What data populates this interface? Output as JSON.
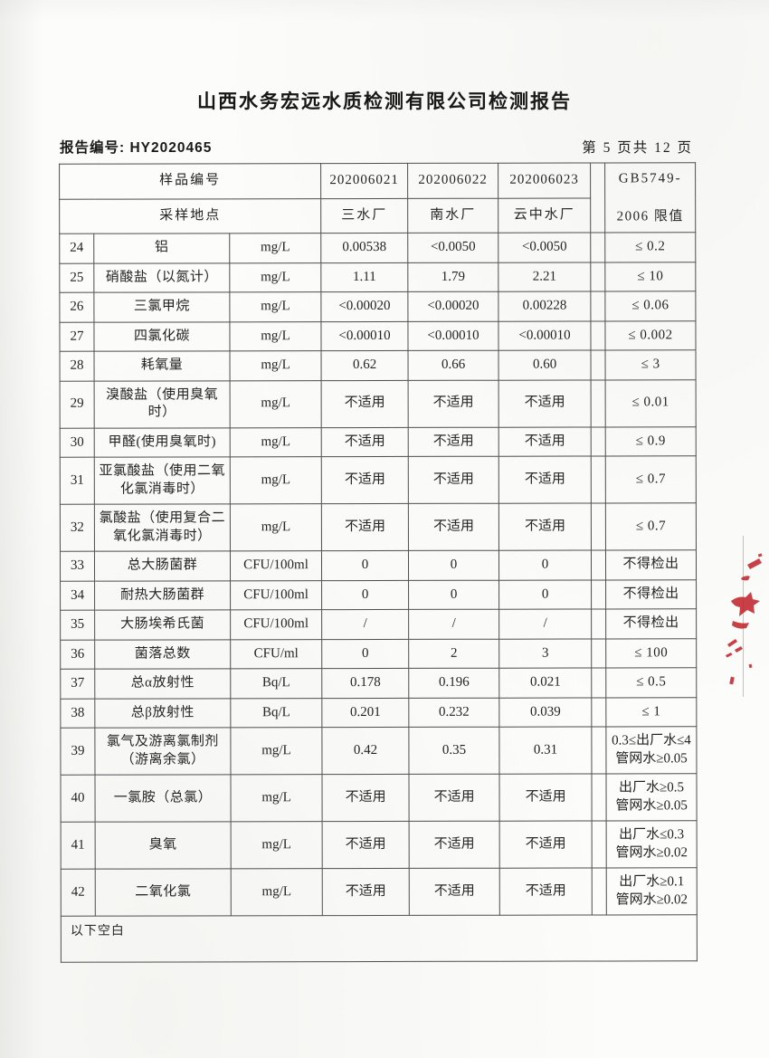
{
  "page": {
    "title": "山西水务宏远水质检测有限公司检测报告",
    "report_no_label": "报告编号:",
    "report_no": "HY2020465",
    "page_indicator": "第 5 页共 12 页"
  },
  "table": {
    "header": {
      "sample_id_label": "样品编号",
      "sample_ids": [
        "202006021",
        "202006022",
        "202006023"
      ],
      "location_label": "采样地点",
      "locations": [
        "三水厂",
        "南水厂",
        "云中水厂"
      ],
      "limit_header_line1": "GB5749-",
      "limit_header_line2": "2006 限值"
    },
    "rows": [
      {
        "no": "24",
        "name": "铝",
        "unit": "mg/L",
        "values": [
          "0.00538",
          "<0.0050",
          "<0.0050"
        ],
        "limit": "≤ 0.2"
      },
      {
        "no": "25",
        "name": "硝酸盐（以氮计）",
        "unit": "mg/L",
        "values": [
          "1.11",
          "1.79",
          "2.21"
        ],
        "limit": "≤ 10"
      },
      {
        "no": "26",
        "name": "三氯甲烷",
        "unit": "mg/L",
        "values": [
          "<0.00020",
          "<0.00020",
          "0.00228"
        ],
        "limit": "≤ 0.06"
      },
      {
        "no": "27",
        "name": "四氯化碳",
        "unit": "mg/L",
        "values": [
          "<0.00010",
          "<0.00010",
          "<0.00010"
        ],
        "limit": "≤ 0.002"
      },
      {
        "no": "28",
        "name": "耗氧量",
        "unit": "mg/L",
        "values": [
          "0.62",
          "0.66",
          "0.60"
        ],
        "limit": "≤ 3"
      },
      {
        "no": "29",
        "name": "溴酸盐（使用臭氧时）",
        "unit": "mg/L",
        "values": [
          "不适用",
          "不适用",
          "不适用"
        ],
        "limit": "≤ 0.01"
      },
      {
        "no": "30",
        "name": "甲醛(使用臭氧时)",
        "unit": "mg/L",
        "values": [
          "不适用",
          "不适用",
          "不适用"
        ],
        "limit": "≤ 0.9"
      },
      {
        "no": "31",
        "name": "亚氯酸盐（使用二氧化氯消毒时）",
        "unit": "mg/L",
        "values": [
          "不适用",
          "不适用",
          "不适用"
        ],
        "limit": "≤ 0.7"
      },
      {
        "no": "32",
        "name": "氯酸盐（使用复合二氧化氯消毒时）",
        "unit": "mg/L",
        "values": [
          "不适用",
          "不适用",
          "不适用"
        ],
        "limit": "≤ 0.7"
      },
      {
        "no": "33",
        "name": "总大肠菌群",
        "unit": "CFU/100ml",
        "values": [
          "0",
          "0",
          "0"
        ],
        "limit": "不得检出"
      },
      {
        "no": "34",
        "name": "耐热大肠菌群",
        "unit": "CFU/100ml",
        "values": [
          "0",
          "0",
          "0"
        ],
        "limit": "不得检出"
      },
      {
        "no": "35",
        "name": "大肠埃希氏菌",
        "unit": "CFU/100ml",
        "values": [
          "/",
          "/",
          "/"
        ],
        "limit": "不得检出"
      },
      {
        "no": "36",
        "name": "菌落总数",
        "unit": "CFU/ml",
        "values": [
          "0",
          "2",
          "3"
        ],
        "limit": "≤ 100"
      },
      {
        "no": "37",
        "name": "总α放射性",
        "unit": "Bq/L",
        "values": [
          "0.178",
          "0.196",
          "0.021"
        ],
        "limit": "≤ 0.5"
      },
      {
        "no": "38",
        "name": "总β放射性",
        "unit": "Bq/L",
        "values": [
          "0.201",
          "0.232",
          "0.039"
        ],
        "limit": "≤ 1"
      },
      {
        "no": "39",
        "name": "氯气及游离氯制剂（游离余氯）",
        "unit": "mg/L",
        "values": [
          "0.42",
          "0.35",
          "0.31"
        ],
        "limit": "0.3≤出厂水≤4\n管网水≥0.05"
      },
      {
        "no": "40",
        "name": "一氯胺（总氯）",
        "unit": "mg/L",
        "values": [
          "不适用",
          "不适用",
          "不适用"
        ],
        "limit": "出厂水≥0.5\n管网水≥0.05"
      },
      {
        "no": "41",
        "name": "臭氧",
        "unit": "mg/L",
        "values": [
          "不适用",
          "不适用",
          "不适用"
        ],
        "limit": "出厂水≤0.3\n管网水≥0.02"
      },
      {
        "no": "42",
        "name": "二氧化氯",
        "unit": "mg/L",
        "values": [
          "不适用",
          "不适用",
          "不适用"
        ],
        "limit": "出厂水≥0.1\n管网水≥0.02"
      }
    ],
    "footer_note": "以下空白"
  },
  "stamp": {
    "name": "red-seal-edge",
    "color": "#c2272d"
  }
}
